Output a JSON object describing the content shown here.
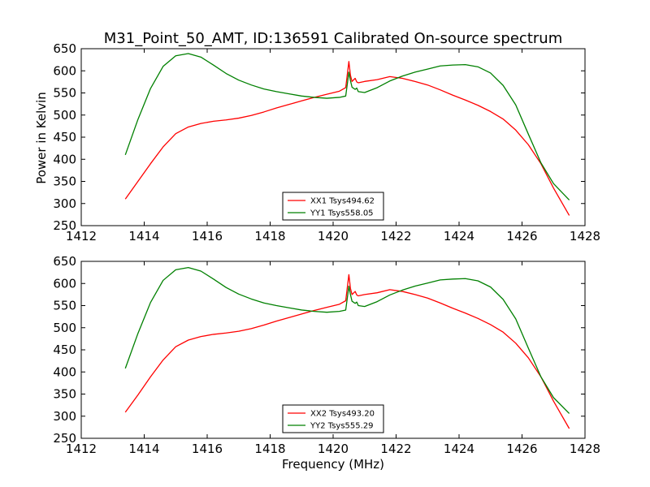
{
  "chart_data": [
    {
      "type": "line",
      "title": "M31_Point_50_AMT, ID:136591 Calibrated On-source spectrum",
      "xlabel": "",
      "ylabel": "Power in Kelvin",
      "xlim": [
        1412,
        1428
      ],
      "ylim": [
        250,
        650
      ],
      "xticks": [
        "1412",
        "1414",
        "1416",
        "1418",
        "1420",
        "1422",
        "1424",
        "1426",
        "1428"
      ],
      "yticks": [
        "250",
        "300",
        "350",
        "400",
        "450",
        "500",
        "550",
        "600",
        "650"
      ],
      "grid": false,
      "legend_position": "lower-center",
      "series": [
        {
          "name": "XX1 Tsys494.62",
          "color": "#ff0000",
          "x": [
            1413.4,
            1413.8,
            1414.2,
            1414.6,
            1415.0,
            1415.4,
            1415.8,
            1416.2,
            1416.6,
            1417.0,
            1417.4,
            1417.8,
            1418.2,
            1418.6,
            1419.0,
            1419.4,
            1419.8,
            1420.2,
            1420.4,
            1420.5,
            1420.55,
            1420.6,
            1420.7,
            1420.75,
            1420.8,
            1421.0,
            1421.4,
            1421.8,
            1422.2,
            1422.6,
            1423.0,
            1423.4,
            1423.8,
            1424.2,
            1424.6,
            1425.0,
            1425.4,
            1425.8,
            1426.2,
            1426.6,
            1427.0,
            1427.5
          ],
          "y": [
            310,
            350,
            390,
            428,
            458,
            473,
            481,
            486,
            489,
            493,
            499,
            507,
            516,
            524,
            532,
            540,
            547,
            554,
            562,
            621,
            590,
            576,
            583,
            575,
            573,
            576,
            580,
            587,
            583,
            576,
            568,
            557,
            545,
            534,
            522,
            508,
            491,
            466,
            433,
            390,
            335,
            273
          ]
        },
        {
          "name": "YY1 Tsys558.05",
          "color": "#008000",
          "x": [
            1413.4,
            1413.8,
            1414.2,
            1414.6,
            1415.0,
            1415.4,
            1415.8,
            1416.2,
            1416.6,
            1417.0,
            1417.4,
            1417.8,
            1418.2,
            1418.6,
            1419.0,
            1419.4,
            1419.8,
            1420.2,
            1420.4,
            1420.5,
            1420.55,
            1420.6,
            1420.7,
            1420.75,
            1420.8,
            1421.0,
            1421.4,
            1421.8,
            1422.2,
            1422.6,
            1423.0,
            1423.4,
            1423.8,
            1424.2,
            1424.6,
            1425.0,
            1425.4,
            1425.8,
            1426.2,
            1426.6,
            1427.0,
            1427.5
          ],
          "y": [
            410,
            490,
            560,
            610,
            634,
            639,
            631,
            613,
            594,
            579,
            568,
            559,
            553,
            548,
            543,
            540,
            538,
            540,
            543,
            597,
            578,
            563,
            558,
            561,
            553,
            551,
            562,
            577,
            588,
            597,
            604,
            611,
            613,
            614,
            609,
            595,
            567,
            523,
            457,
            392,
            345,
            308
          ]
        }
      ]
    },
    {
      "type": "line",
      "title": "",
      "xlabel": "Frequency (MHz)",
      "ylabel": "",
      "xlim": [
        1412,
        1428
      ],
      "ylim": [
        250,
        650
      ],
      "xticks": [
        "1412",
        "1414",
        "1416",
        "1418",
        "1420",
        "1422",
        "1424",
        "1426",
        "1428"
      ],
      "yticks": [
        "250",
        "300",
        "350",
        "400",
        "450",
        "500",
        "550",
        "600",
        "650"
      ],
      "grid": false,
      "legend_position": "lower-center",
      "series": [
        {
          "name": "XX2 Tsys493.20",
          "color": "#ff0000",
          "x": [
            1413.4,
            1413.8,
            1414.2,
            1414.6,
            1415.0,
            1415.4,
            1415.8,
            1416.2,
            1416.6,
            1417.0,
            1417.4,
            1417.8,
            1418.2,
            1418.6,
            1419.0,
            1419.4,
            1419.8,
            1420.2,
            1420.4,
            1420.5,
            1420.55,
            1420.6,
            1420.7,
            1420.75,
            1420.8,
            1421.0,
            1421.4,
            1421.8,
            1422.2,
            1422.6,
            1423.0,
            1423.4,
            1423.8,
            1424.2,
            1424.6,
            1425.0,
            1425.4,
            1425.8,
            1426.2,
            1426.6,
            1427.0,
            1427.5
          ],
          "y": [
            309,
            348,
            389,
            427,
            457,
            472,
            480,
            485,
            488,
            492,
            498,
            506,
            515,
            523,
            531,
            539,
            546,
            553,
            561,
            620,
            589,
            575,
            582,
            574,
            572,
            575,
            579,
            586,
            582,
            575,
            567,
            556,
            544,
            533,
            521,
            507,
            490,
            465,
            432,
            389,
            334,
            272
          ]
        },
        {
          "name": "YY2 Tsys555.29",
          "color": "#008000",
          "x": [
            1413.4,
            1413.8,
            1414.2,
            1414.6,
            1415.0,
            1415.4,
            1415.8,
            1416.2,
            1416.6,
            1417.0,
            1417.4,
            1417.8,
            1418.2,
            1418.6,
            1419.0,
            1419.4,
            1419.8,
            1420.2,
            1420.4,
            1420.5,
            1420.55,
            1420.6,
            1420.7,
            1420.75,
            1420.8,
            1421.0,
            1421.4,
            1421.8,
            1422.2,
            1422.6,
            1423.0,
            1423.4,
            1423.8,
            1424.2,
            1424.6,
            1425.0,
            1425.4,
            1425.8,
            1426.2,
            1426.6,
            1427.0,
            1427.5
          ],
          "y": [
            408,
            487,
            557,
            607,
            631,
            636,
            628,
            610,
            591,
            576,
            565,
            556,
            550,
            545,
            540,
            537,
            535,
            537,
            540,
            594,
            575,
            560,
            555,
            558,
            550,
            548,
            559,
            574,
            585,
            594,
            601,
            608,
            610,
            611,
            606,
            592,
            564,
            520,
            454,
            389,
            342,
            306
          ]
        }
      ]
    }
  ]
}
